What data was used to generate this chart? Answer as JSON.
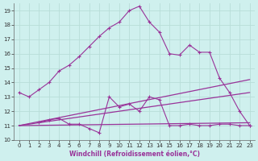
{
  "xlabel": "Windchill (Refroidissement éolien,°C)",
  "ylabel": "",
  "bg_color": "#cff0ee",
  "grid_color": "#b8ddd8",
  "line_color": "#993399",
  "xlim": [
    -0.5,
    23.5
  ],
  "ylim": [
    10,
    19.5
  ],
  "xticks": [
    0,
    1,
    2,
    3,
    4,
    5,
    6,
    7,
    8,
    9,
    10,
    11,
    12,
    13,
    14,
    15,
    16,
    17,
    18,
    19,
    20,
    21,
    22,
    23
  ],
  "yticks": [
    10,
    11,
    12,
    13,
    14,
    15,
    16,
    17,
    18,
    19
  ],
  "line1_x": [
    0,
    1,
    2,
    3,
    4,
    5,
    6,
    7,
    8,
    9,
    10,
    11,
    12,
    13,
    14,
    15,
    16,
    17,
    18,
    19,
    20,
    21,
    22,
    23
  ],
  "line1_y": [
    13.3,
    13.0,
    13.5,
    14.0,
    14.8,
    15.2,
    15.8,
    16.5,
    17.2,
    17.8,
    18.2,
    19.0,
    19.3,
    18.2,
    17.5,
    16.0,
    15.9,
    16.6,
    16.1,
    16.1,
    14.3,
    13.3,
    12.0,
    11.0
  ],
  "line2_x": [
    2,
    3,
    4,
    5,
    6,
    7,
    8,
    9,
    10,
    11,
    12,
    13,
    14,
    15,
    16,
    17,
    18,
    19,
    20,
    21,
    22,
    23
  ],
  "line2_y": [
    11.2,
    11.4,
    11.5,
    11.1,
    11.1,
    10.8,
    10.5,
    13.0,
    12.3,
    12.5,
    12.0,
    13.0,
    12.8,
    11.0,
    11.0,
    11.1,
    11.0,
    11.0,
    11.1,
    11.1,
    11.0,
    11.0
  ],
  "line3_x": [
    0,
    23
  ],
  "line3_y": [
    11.0,
    14.2
  ],
  "line4_x": [
    0,
    23
  ],
  "line4_y": [
    11.0,
    13.3
  ],
  "line5_x": [
    0,
    23
  ],
  "line5_y": [
    11.0,
    11.2
  ]
}
